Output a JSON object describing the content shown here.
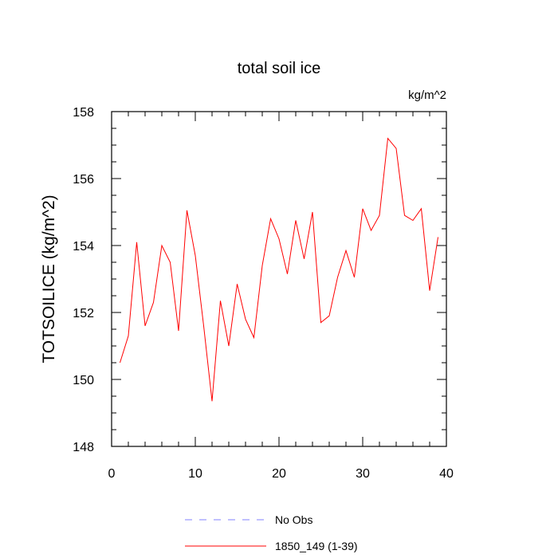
{
  "chart_data": {
    "type": "line",
    "title": "total soil ice",
    "units_label": "kg/m^2",
    "ylabel": "TOTSOILICE  (kg/m^2)",
    "xlabel": "",
    "xlim": [
      0,
      40
    ],
    "ylim": [
      148,
      158
    ],
    "x_ticks": [
      0,
      10,
      20,
      30,
      40
    ],
    "y_ticks": [
      148,
      150,
      152,
      154,
      156,
      158
    ],
    "x_tick_labels": [
      "0",
      "10",
      "20",
      "30",
      "40"
    ],
    "y_tick_labels": [
      "148",
      "150",
      "152",
      "154",
      "156",
      "158"
    ],
    "grid": false,
    "legend_position": "bottom",
    "series": [
      {
        "name": "1850_149 (1-39)",
        "color": "#ff0000",
        "x": [
          1,
          2,
          3,
          4,
          5,
          6,
          7,
          8,
          9,
          10,
          11,
          12,
          13,
          14,
          15,
          16,
          17,
          18,
          19,
          20,
          21,
          22,
          23,
          24,
          25,
          26,
          27,
          28,
          29,
          30,
          31,
          32,
          33,
          34,
          35,
          36,
          37,
          38,
          39
        ],
        "values": [
          150.5,
          151.3,
          154.1,
          151.6,
          152.3,
          154.0,
          153.5,
          151.45,
          155.05,
          153.7,
          151.6,
          149.35,
          152.35,
          151.0,
          152.85,
          151.8,
          151.25,
          153.4,
          154.8,
          154.2,
          153.15,
          154.75,
          153.6,
          155.0,
          151.7,
          151.9,
          153.05,
          153.85,
          153.05,
          155.1,
          154.45,
          154.9,
          157.2,
          156.9,
          154.9,
          154.75,
          155.1,
          152.65,
          154.25
        ]
      }
    ],
    "legend": [
      {
        "label": "No Obs",
        "color": "#8080ff",
        "dash": "dashed"
      },
      {
        "label": "1850_149 (1-39)",
        "color": "#ff0000",
        "dash": "solid"
      }
    ]
  }
}
